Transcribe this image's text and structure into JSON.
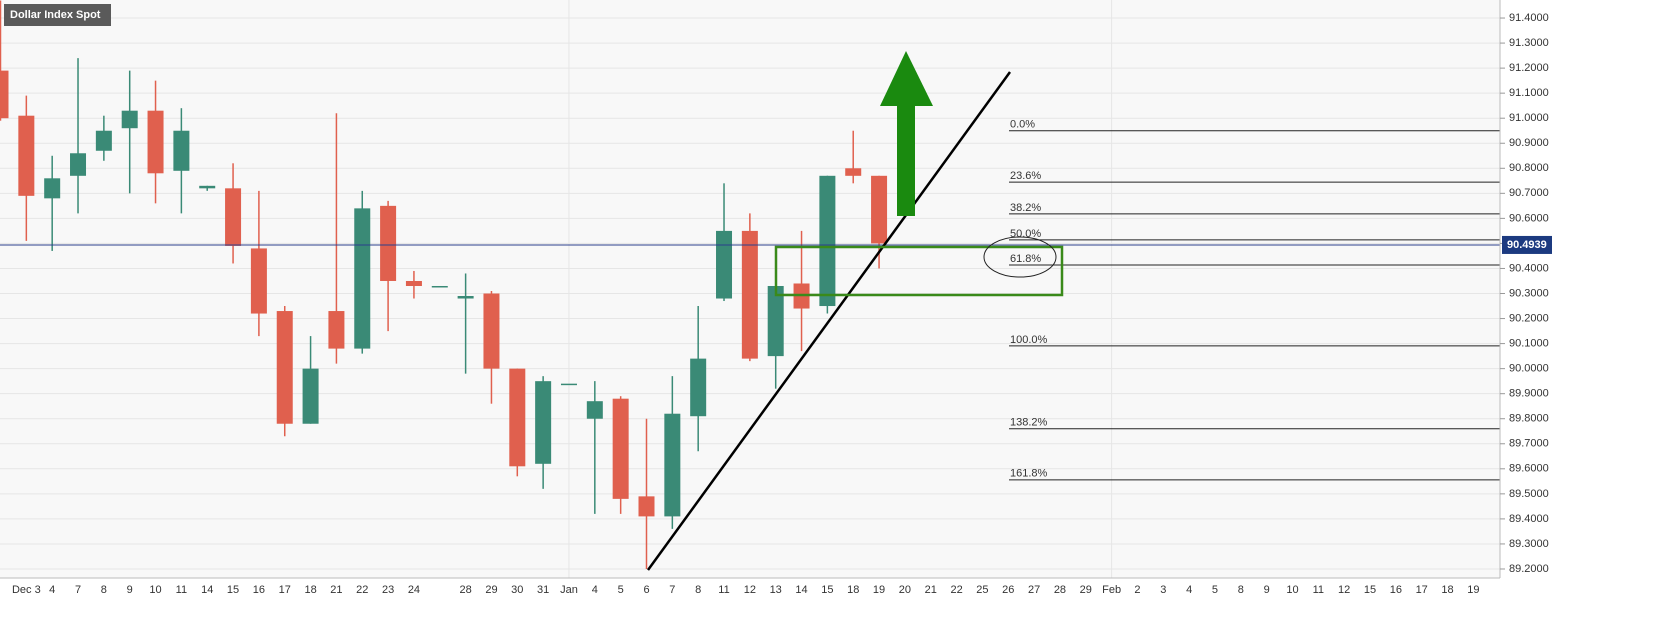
{
  "chart_data": {
    "type": "candlestick",
    "title": "Dollar Index Spot",
    "categories": [
      null,
      "Dec 3",
      "4",
      "7",
      "8",
      "9",
      "10",
      "11",
      "14",
      "15",
      "16",
      "17",
      "18",
      "21",
      "22",
      "23",
      "24",
      null,
      "28",
      "29",
      "30",
      "31",
      "Jan",
      "4",
      "5",
      "6",
      "7",
      "8",
      "11",
      "12",
      "13",
      "14",
      "15",
      "18",
      "19",
      "20",
      "21",
      "22",
      "25",
      "26",
      "27",
      "28",
      "29",
      "Feb",
      "2",
      "3",
      "4",
      "5",
      "8",
      "9",
      "10",
      "11",
      "12",
      "15",
      "16",
      "17",
      "18",
      "19"
    ],
    "open": [
      91.19,
      91.01,
      90.68,
      90.77,
      90.87,
      90.96,
      91.03,
      90.79,
      90.72,
      90.72,
      90.48,
      90.23,
      89.78,
      90.23,
      90.08,
      90.65,
      90.35,
      90.33,
      90.28,
      90.3,
      90.0,
      89.62,
      89.94,
      89.8,
      89.88,
      89.49,
      89.41,
      89.81,
      90.28,
      90.55,
      90.05,
      90.34,
      90.25,
      90.8,
      90.77,
      null,
      null,
      null,
      null,
      null,
      null,
      null,
      null,
      null,
      null,
      null,
      null,
      null,
      null,
      null,
      null,
      null,
      null,
      null,
      null,
      null,
      null,
      null
    ],
    "high": [
      91.47,
      91.09,
      90.85,
      91.24,
      91.01,
      91.19,
      91.15,
      91.04,
      90.73,
      90.82,
      90.71,
      90.25,
      90.13,
      91.02,
      90.71,
      90.67,
      90.39,
      90.33,
      90.38,
      90.31,
      90.0,
      89.97,
      89.94,
      89.95,
      89.89,
      89.8,
      89.97,
      90.25,
      90.74,
      90.62,
      90.33,
      90.55,
      90.77,
      90.95,
      90.77,
      null,
      null,
      null,
      null,
      null,
      null,
      null,
      null,
      null,
      null,
      null,
      null,
      null,
      null,
      null,
      null,
      null,
      null,
      null,
      null,
      null,
      null,
      null
    ],
    "low": [
      90.99,
      90.51,
      90.47,
      90.62,
      90.83,
      90.7,
      90.66,
      90.62,
      90.71,
      90.42,
      90.13,
      89.73,
      89.78,
      90.02,
      90.06,
      90.15,
      90.28,
      90.33,
      89.98,
      89.86,
      89.57,
      89.52,
      89.94,
      89.42,
      89.42,
      89.2,
      89.36,
      89.67,
      90.27,
      90.03,
      89.92,
      90.07,
      90.22,
      90.74,
      90.4,
      null,
      null,
      null,
      null,
      null,
      null,
      null,
      null,
      null,
      null,
      null,
      null,
      null,
      null,
      null,
      null,
      null,
      null,
      null,
      null,
      null,
      null,
      null
    ],
    "close": [
      91.0,
      90.69,
      90.76,
      90.86,
      90.95,
      91.03,
      90.78,
      90.95,
      90.73,
      90.49,
      90.22,
      89.78,
      90.0,
      90.08,
      90.64,
      90.35,
      90.33,
      90.33,
      90.29,
      90.0,
      89.61,
      89.95,
      89.94,
      89.87,
      89.48,
      89.41,
      89.82,
      90.04,
      90.55,
      90.04,
      90.33,
      90.24,
      90.77,
      90.77,
      90.5,
      null,
      null,
      null,
      null,
      null,
      null,
      null,
      null,
      null,
      null,
      null,
      null,
      null,
      null,
      null,
      null,
      null,
      null,
      null,
      null,
      null,
      null,
      null
    ],
    "up_color": "#3a8a76",
    "down_color": "#e0604e",
    "ylim": [
      89.164,
      91.472
    ],
    "yticks": [
      {
        "value": 89.2,
        "label": "89.2000"
      },
      {
        "value": 89.3,
        "label": "89.3000"
      },
      {
        "value": 89.4,
        "label": "89.4000"
      },
      {
        "value": 89.5,
        "label": "89.5000"
      },
      {
        "value": 89.6,
        "label": "89.6000"
      },
      {
        "value": 89.7,
        "label": "89.7000"
      },
      {
        "value": 89.8,
        "label": "89.8000"
      },
      {
        "value": 89.9,
        "label": "89.9000"
      },
      {
        "value": 90.0,
        "label": "90.0000"
      },
      {
        "value": 90.1,
        "label": "90.1000"
      },
      {
        "value": 90.2,
        "label": "90.2000"
      },
      {
        "value": 90.3,
        "label": "90.3000"
      },
      {
        "value": 90.4,
        "label": "90.4000"
      },
      {
        "value": 90.5,
        "label": "90.5000"
      },
      {
        "value": 90.6,
        "label": "90.6000"
      },
      {
        "value": 90.7,
        "label": "90.7000"
      },
      {
        "value": 90.8,
        "label": "90.8000"
      },
      {
        "value": 90.9,
        "label": "90.9000"
      },
      {
        "value": 91.0,
        "label": "91.0000"
      },
      {
        "value": 91.1,
        "label": "91.1000"
      },
      {
        "value": 91.2,
        "label": "91.2000"
      },
      {
        "value": 91.3,
        "label": "91.3000"
      },
      {
        "value": 91.4,
        "label": "91.4000"
      }
    ],
    "grid": true,
    "last_price": 90.4939,
    "fib_levels": [
      {
        "label": "0.0%",
        "value": 90.95
      },
      {
        "label": "23.6%",
        "value": 90.745
      },
      {
        "label": "38.2%",
        "value": 90.618
      },
      {
        "label": "50.0%",
        "value": 90.514
      },
      {
        "label": "61.8%",
        "value": 90.414
      },
      {
        "label": "100.0%",
        "value": 90.091
      },
      {
        "label": "138.2%",
        "value": 89.76
      },
      {
        "label": "161.8%",
        "value": 89.556
      }
    ]
  }
}
